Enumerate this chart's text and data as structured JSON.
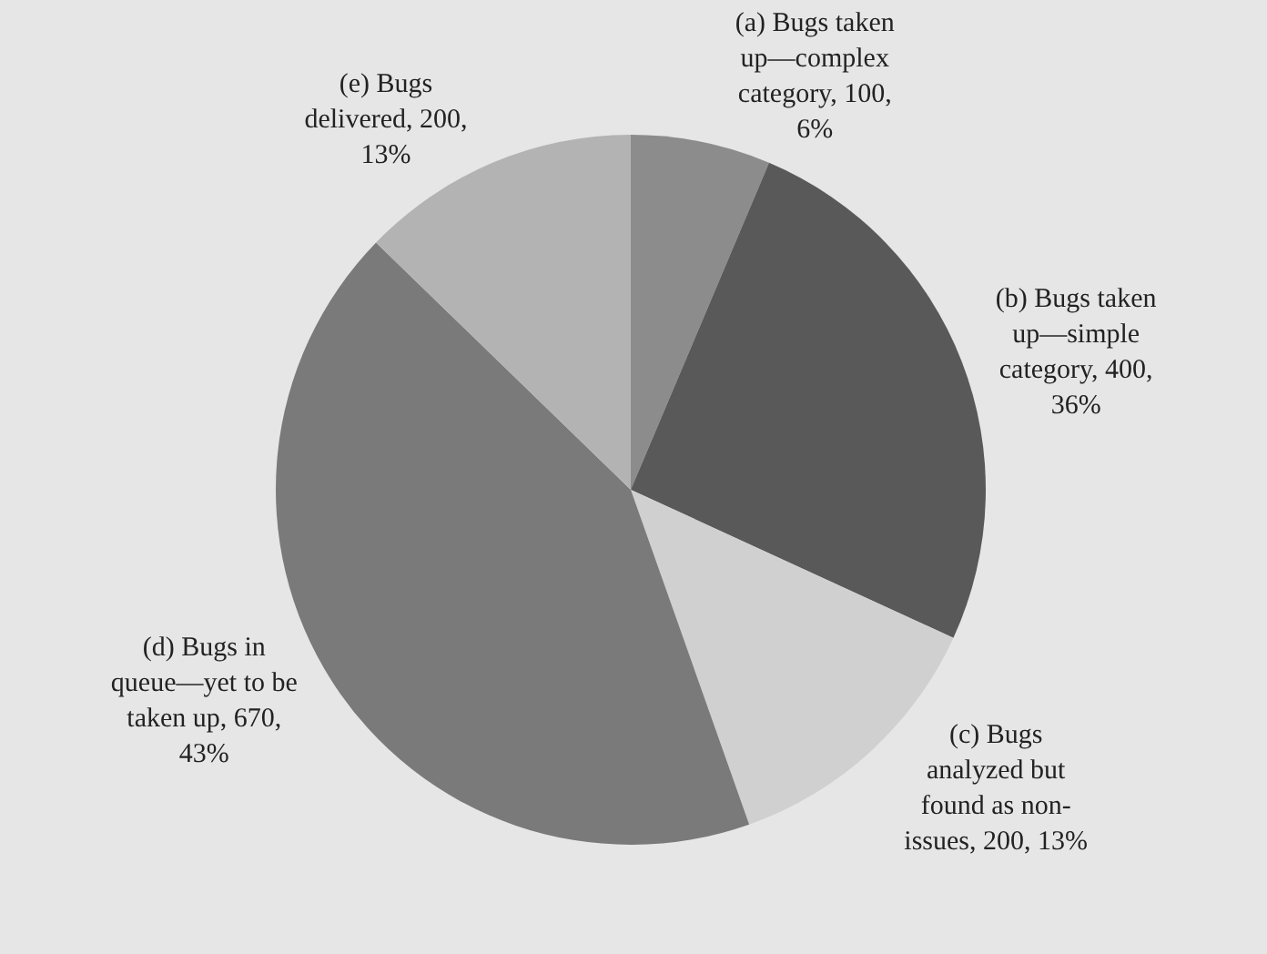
{
  "chart_data": {
    "type": "pie",
    "categories": [
      "(a) Bugs taken up—complex category",
      "(b) Bugs taken up—simple category",
      "(c) Bugs analyzed but found as non-issues",
      "(d) Bugs in queue—yet to be taken up",
      "(e) Bugs delivered"
    ],
    "values": [
      100,
      400,
      200,
      670,
      200
    ],
    "value_labels": [
      "100, 6%",
      "400, 36%",
      "200, 13%",
      "670, 43%",
      "200, 13%"
    ],
    "colors": [
      "#8c8c8c",
      "#595959",
      "#d0d0d0",
      "#7a7a7a",
      "#b3b3b3"
    ],
    "legend": false
  }
}
